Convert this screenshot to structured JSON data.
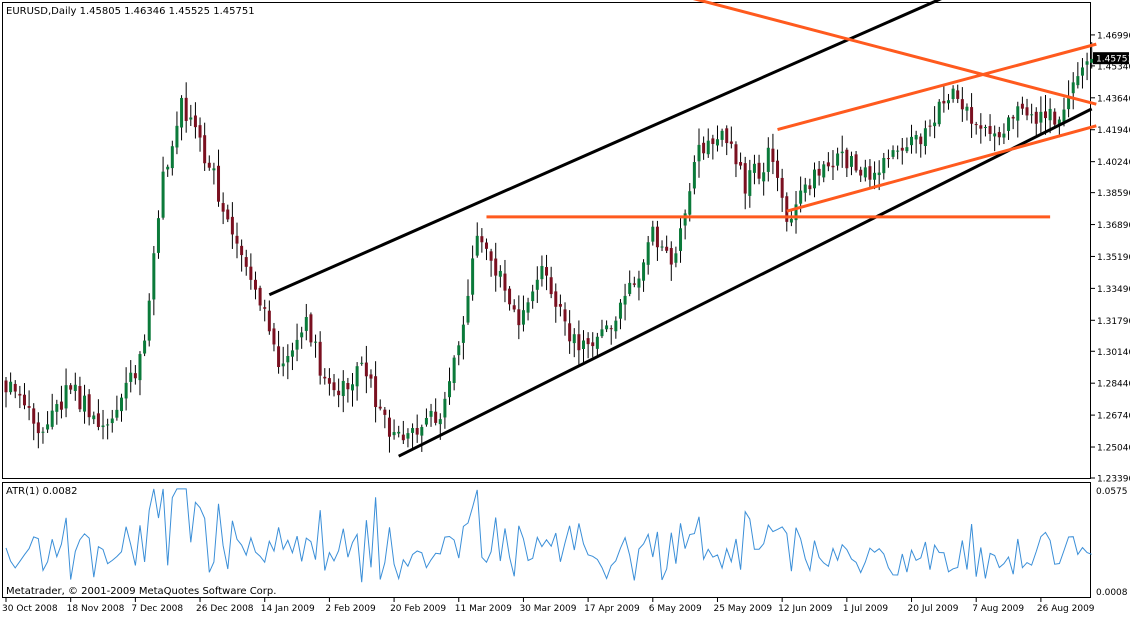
{
  "main": {
    "title": "EURUSD,Daily  1.45805 1.46346 1.45525 1.45751",
    "current_price": "1.45751"
  },
  "indicator": {
    "title": "ATR(1) 0.0082",
    "y_top_label": "0.0575",
    "y_bottom_label": "0.0008",
    "copyright": "Metatrader, © 2001-2009 MetaQuotes Software Corp."
  },
  "colors": {
    "bull": "#0b7a3a",
    "bear": "#7a1020",
    "wick": "#000000",
    "trend_black": "#000000",
    "trend_orange": "#ff5a1e",
    "atr_line": "#3b8fd8",
    "price_label_bg": "#000000",
    "price_label_fg": "#ffffff"
  },
  "chart_data": {
    "type": "candlestick",
    "symbol": "EURUSD",
    "timeframe": "Daily",
    "ohlc_readout": {
      "open": 1.45805,
      "high": 1.46346,
      "low": 1.45525,
      "close": 1.45751
    },
    "ylim": [
      1.2339,
      1.4869
    ],
    "y_ticks": [
      "1.46990",
      "1.45340",
      "1.43640",
      "1.41940",
      "1.40240",
      "1.38590",
      "1.36890",
      "1.35190",
      "1.33490",
      "1.31790",
      "1.30140",
      "1.28440",
      "1.26740",
      "1.25040",
      "1.23390"
    ],
    "x_ticks": [
      "30 Oct 2008",
      "18 Nov 2008",
      "7 Dec 2008",
      "26 Dec 2008",
      "14 Jan 2009",
      "2 Feb 2009",
      "20 Feb 2009",
      "11 Mar 2009",
      "30 Mar 2009",
      "17 Apr 2009",
      "6 May 2009",
      "25 May 2009",
      "12 Jun 2009",
      "1 Jul 2009",
      "20 Jul 2009",
      "7 Aug 2009",
      "26 Aug 2009"
    ],
    "x_tick_index": [
      0,
      14,
      28,
      42,
      56,
      70,
      84,
      98,
      112,
      126,
      140,
      154,
      168,
      182,
      196,
      210,
      224
    ],
    "bar_count": 236,
    "anchors": [
      [
        0,
        1.285
      ],
      [
        8,
        1.258
      ],
      [
        14,
        1.282
      ],
      [
        20,
        1.262
      ],
      [
        26,
        1.28
      ],
      [
        30,
        1.305
      ],
      [
        34,
        1.395
      ],
      [
        38,
        1.435
      ],
      [
        44,
        1.4
      ],
      [
        50,
        1.36
      ],
      [
        55,
        1.33
      ],
      [
        60,
        1.29
      ],
      [
        65,
        1.315
      ],
      [
        70,
        1.28
      ],
      [
        77,
        1.292
      ],
      [
        84,
        1.255
      ],
      [
        88,
        1.262
      ],
      [
        94,
        1.268
      ],
      [
        98,
        1.305
      ],
      [
        102,
        1.368
      ],
      [
        107,
        1.342
      ],
      [
        111,
        1.318
      ],
      [
        116,
        1.345
      ],
      [
        120,
        1.322
      ],
      [
        124,
        1.3
      ],
      [
        128,
        1.305
      ],
      [
        134,
        1.33
      ],
      [
        140,
        1.362
      ],
      [
        144,
        1.345
      ],
      [
        149,
        1.403
      ],
      [
        155,
        1.42
      ],
      [
        160,
        1.39
      ],
      [
        165,
        1.405
      ],
      [
        169,
        1.372
      ],
      [
        175,
        1.398
      ],
      [
        181,
        1.405
      ],
      [
        187,
        1.392
      ],
      [
        193,
        1.405
      ],
      [
        199,
        1.42
      ],
      [
        205,
        1.44
      ],
      [
        210,
        1.418
      ],
      [
        215,
        1.418
      ],
      [
        220,
        1.43
      ],
      [
        226,
        1.425
      ],
      [
        229,
        1.432
      ],
      [
        236,
        1.458
      ]
    ],
    "trendlines": [
      {
        "color": "black",
        "points": [
          [
            57,
            1.3315
          ],
          [
            211,
            1.4985
          ]
        ]
      },
      {
        "color": "black",
        "points": [
          [
            85,
            1.2455
          ],
          [
            235,
            1.4305
          ]
        ]
      },
      {
        "color": "orange",
        "points": [
          [
            104,
            1.373
          ],
          [
            226,
            1.373
          ]
        ]
      },
      {
        "color": "orange",
        "points": [
          [
            136,
            1.4975
          ],
          [
            236,
            1.433
          ]
        ]
      },
      {
        "color": "orange",
        "points": [
          [
            167,
            1.4195
          ],
          [
            236,
            1.465
          ]
        ]
      },
      {
        "color": "orange",
        "points": [
          [
            169,
            1.376
          ],
          [
            236,
            1.4215
          ]
        ]
      }
    ],
    "atr": {
      "ylim": [
        0.0008,
        0.0575
      ],
      "seed": 2009
    }
  }
}
